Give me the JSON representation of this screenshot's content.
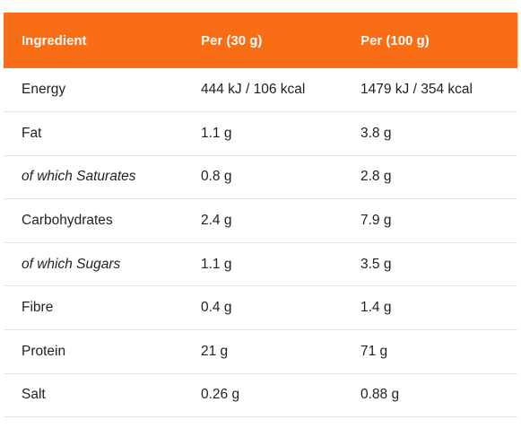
{
  "header_color": "#f96d15",
  "table": {
    "headers": [
      "Ingredient",
      "Per (30 g)",
      "Per (100 g)"
    ],
    "rows": [
      {
        "ingredient": "Energy",
        "per30": "444 kJ / 106 kcal",
        "per100": "1479 kJ / 354 kcal",
        "italic": false
      },
      {
        "ingredient": "Fat",
        "per30": "1.1 g",
        "per100": "3.8 g",
        "italic": false
      },
      {
        "ingredient": "of which Saturates",
        "per30": "0.8 g",
        "per100": "2.8 g",
        "italic": true
      },
      {
        "ingredient": "Carbohydrates",
        "per30": "2.4 g",
        "per100": "7.9 g",
        "italic": false
      },
      {
        "ingredient": "of which Sugars",
        "per30": "1.1 g",
        "per100": "3.5 g",
        "italic": true
      },
      {
        "ingredient": "Fibre",
        "per30": "0.4 g",
        "per100": "1.4 g",
        "italic": false
      },
      {
        "ingredient": "Protein",
        "per30": "21 g",
        "per100": "71 g",
        "italic": false
      },
      {
        "ingredient": "Salt",
        "per30": "0.26 g",
        "per100": "0.88 g",
        "italic": false
      }
    ]
  }
}
